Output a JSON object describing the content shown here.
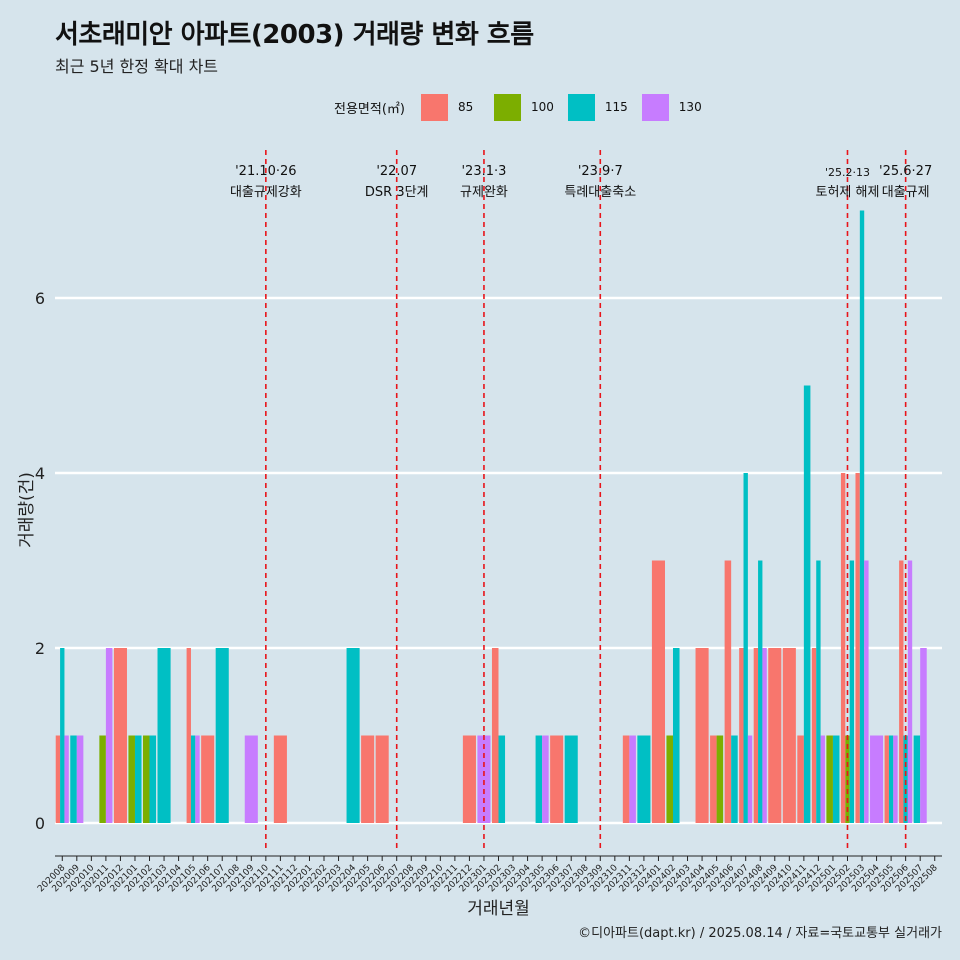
{
  "header": {
    "title": "서초래미안 아파트(2003) 거래량 변화 흐름",
    "subtitle": "최근 5년 한정 확대 차트"
  },
  "caption": "©디아파트(dapt.kr) / 2025.08.14 / 자료=국토교통부 실거래가",
  "legend": {
    "title": "전용면적(㎡)",
    "items": [
      {
        "label": "85",
        "color": "#F8766D"
      },
      {
        "label": "100",
        "color": "#7CAE00"
      },
      {
        "label": "115",
        "color": "#00BFC4"
      },
      {
        "label": "130",
        "color": "#C77CFF"
      }
    ]
  },
  "chart_data": {
    "type": "bar",
    "xlabel": "거래년월",
    "ylabel": "거래량(건)",
    "ylim": [
      0,
      7
    ],
    "yticks": [
      0,
      2,
      4,
      6
    ],
    "grid": true,
    "legend_position": "top",
    "categories": [
      "202008",
      "202009",
      "202010",
      "202011",
      "202012",
      "202101",
      "202102",
      "202103",
      "202104",
      "202105",
      "202106",
      "202107",
      "202108",
      "202109",
      "202110",
      "202111",
      "202112",
      "202201",
      "202202",
      "202203",
      "202204",
      "202205",
      "202206",
      "202207",
      "202208",
      "202209",
      "202210",
      "202211",
      "202212",
      "202301",
      "202302",
      "202303",
      "202304",
      "202305",
      "202306",
      "202307",
      "202308",
      "202309",
      "202310",
      "202311",
      "202312",
      "202401",
      "202402",
      "202403",
      "202404",
      "202405",
      "202406",
      "202407",
      "202408",
      "202409",
      "202410",
      "202411",
      "202412",
      "202501",
      "202502",
      "202503",
      "202504",
      "202505",
      "202506",
      "202507",
      "202508"
    ],
    "series": [
      {
        "name": "85",
        "color": "#F8766D",
        "values": [
          1,
          0,
          0,
          0,
          2,
          0,
          0,
          0,
          0,
          2,
          1,
          0,
          0,
          0,
          0,
          1,
          0,
          0,
          0,
          0,
          0,
          1,
          1,
          0,
          0,
          0,
          0,
          0,
          1,
          0,
          2,
          0,
          0,
          0,
          1,
          0,
          0,
          0,
          0,
          1,
          0,
          3,
          0,
          0,
          2,
          1,
          3,
          2,
          2,
          2,
          2,
          1,
          2,
          0,
          4,
          4,
          0,
          1,
          3,
          0,
          0
        ]
      },
      {
        "name": "100",
        "color": "#7CAE00",
        "values": [
          0,
          0,
          0,
          1,
          0,
          1,
          1,
          0,
          0,
          0,
          0,
          0,
          0,
          0,
          0,
          0,
          0,
          0,
          0,
          0,
          0,
          0,
          0,
          0,
          0,
          0,
          0,
          0,
          0,
          0,
          0,
          0,
          0,
          0,
          0,
          0,
          0,
          0,
          0,
          0,
          0,
          0,
          1,
          0,
          0,
          1,
          0,
          0,
          0,
          0,
          0,
          0,
          0,
          1,
          1,
          0,
          0,
          0,
          0,
          0,
          0
        ]
      },
      {
        "name": "115",
        "color": "#00BFC4",
        "values": [
          2,
          1,
          0,
          0,
          0,
          1,
          1,
          2,
          0,
          1,
          0,
          2,
          0,
          0,
          0,
          0,
          0,
          0,
          0,
          0,
          2,
          0,
          0,
          0,
          0,
          0,
          0,
          0,
          0,
          0,
          1,
          0,
          0,
          1,
          0,
          1,
          0,
          0,
          0,
          0,
          1,
          0,
          2,
          0,
          0,
          0,
          1,
          4,
          3,
          0,
          0,
          5,
          3,
          1,
          3,
          7,
          0,
          1,
          1,
          1,
          0
        ]
      },
      {
        "name": "130",
        "color": "#C77CFF",
        "values": [
          1,
          1,
          0,
          2,
          0,
          0,
          0,
          0,
          0,
          1,
          0,
          0,
          0,
          1,
          0,
          0,
          0,
          0,
          0,
          0,
          0,
          0,
          0,
          0,
          0,
          0,
          0,
          0,
          0,
          1,
          0,
          0,
          0,
          1,
          0,
          0,
          0,
          0,
          0,
          1,
          0,
          0,
          0,
          0,
          0,
          0,
          0,
          1,
          2,
          0,
          0,
          0,
          1,
          0,
          0,
          3,
          1,
          1,
          3,
          2,
          0
        ]
      }
    ],
    "annotations": [
      {
        "date": "'21.10·26",
        "label": "대출규제강화",
        "x": "202110"
      },
      {
        "date": "'22.07",
        "label": "DSR 3단계",
        "x": "202207"
      },
      {
        "date": "'23.1·3",
        "label": "규제완화",
        "x": "202301"
      },
      {
        "date": "'23.9·7",
        "label": "특례대출축소",
        "x": "202309"
      },
      {
        "date": "'25.2·13",
        "label": "토허제 해제",
        "x": "202502"
      },
      {
        "date": "'25.6·27",
        "label": "대출규제",
        "x": "202506"
      }
    ]
  }
}
